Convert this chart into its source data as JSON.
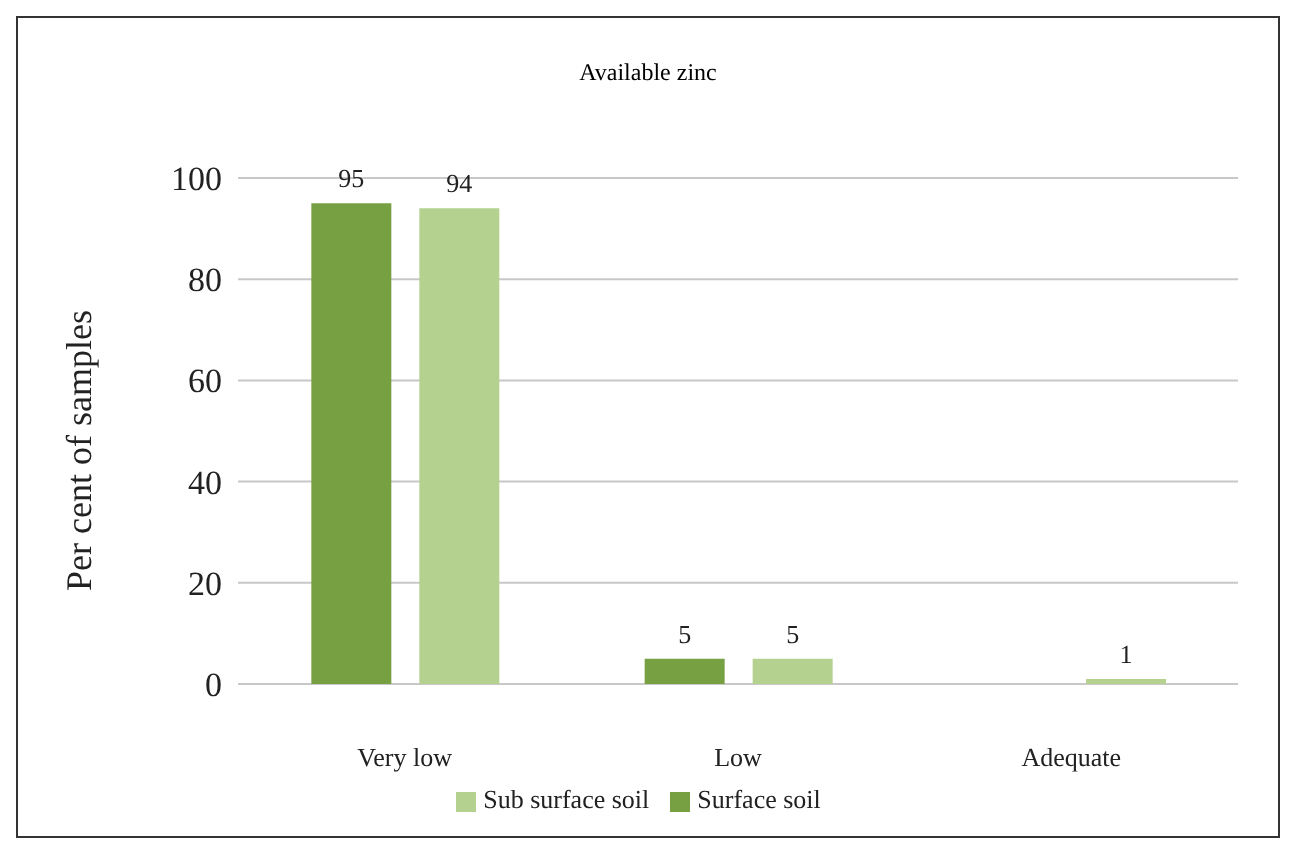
{
  "chart_data": {
    "type": "bar",
    "title": "Available zinc",
    "ylabel": "Per cent of samples",
    "categories": [
      "Very low",
      "Low",
      "Adequate"
    ],
    "series": [
      {
        "name": "Surface soil",
        "color": "#77a043",
        "values": [
          95,
          5,
          null
        ]
      },
      {
        "name": "Sub surface soil",
        "color": "#b5d190",
        "values": [
          94,
          5,
          1
        ]
      }
    ],
    "ylim": [
      0,
      100
    ],
    "yticks": [
      0,
      20,
      40,
      60,
      80,
      100
    ],
    "grid": "y",
    "legend": "bottom",
    "data_labels": true
  }
}
